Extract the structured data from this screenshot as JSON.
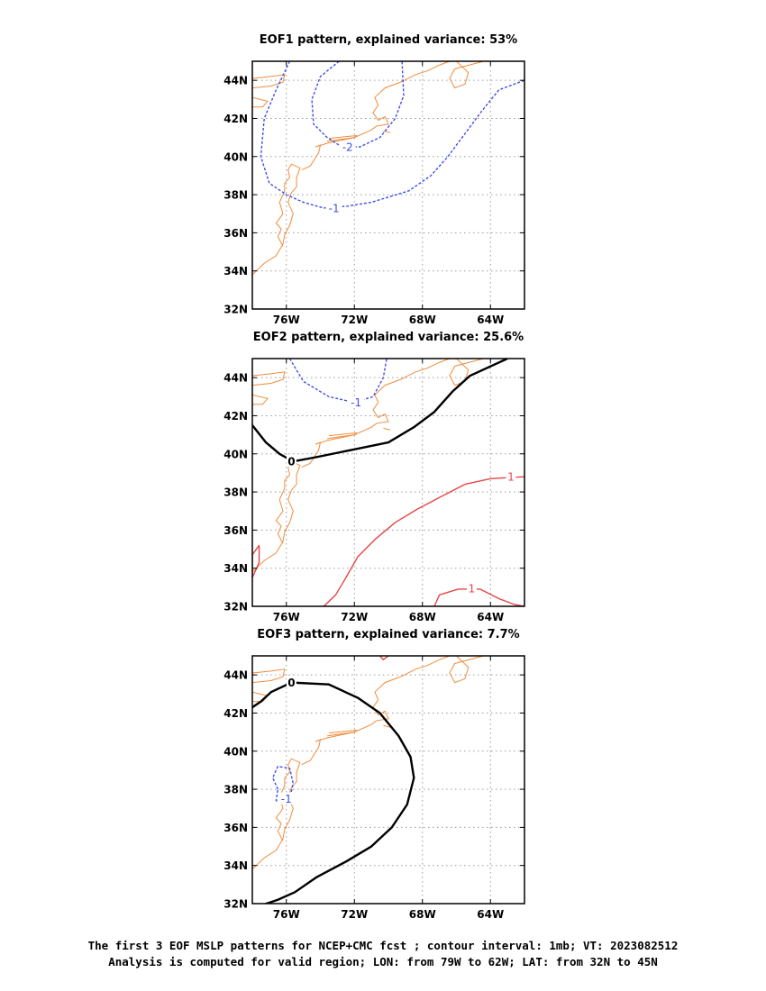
{
  "chart_data": [
    {
      "type": "contour",
      "title": "EOF1 pattern, explained variance: 53%",
      "xlim": [
        -78,
        -62
      ],
      "ylim": [
        32,
        45
      ],
      "xticks": [
        -76,
        -72,
        -68,
        -64
      ],
      "yticks": [
        32,
        34,
        36,
        38,
        40,
        42,
        44
      ],
      "xtick_labels": [
        "76W",
        "72W",
        "68W",
        "64W"
      ],
      "ytick_labels": [
        "32N",
        "34N",
        "36N",
        "38N",
        "40N",
        "42N",
        "44N"
      ],
      "grid": true,
      "coastline_color": "#f08c3c",
      "contours": [
        {
          "level": -1,
          "label": "-1",
          "color": "#3c50e6",
          "style": "dashed",
          "points": [
            [
              -75.8,
              45
            ],
            [
              -76.6,
              43.5
            ],
            [
              -77.3,
              42
            ],
            [
              -77.5,
              40
            ],
            [
              -77,
              38.6
            ],
            [
              -76,
              38
            ],
            [
              -75,
              37.6
            ],
            [
              -73.8,
              37.3
            ],
            [
              -72.4,
              37.4
            ],
            [
              -71,
              37.6
            ],
            [
              -68.8,
              38.2
            ],
            [
              -67.5,
              39
            ],
            [
              -66.5,
              40
            ],
            [
              -65.5,
              41.2
            ],
            [
              -64.5,
              42.4
            ],
            [
              -63.5,
              43.5
            ],
            [
              -62,
              44
            ]
          ],
          "label_at": [
            -73.2,
            37.3
          ]
        },
        {
          "level": -2,
          "label": "-2",
          "color": "#3c50e6",
          "style": "dashed",
          "points": [
            [
              -72.9,
              45
            ],
            [
              -74,
              44.2
            ],
            [
              -74.5,
              43
            ],
            [
              -74.4,
              41.7
            ],
            [
              -73.6,
              41
            ],
            [
              -72.9,
              40.6
            ],
            [
              -71.7,
              40.5
            ],
            [
              -70.5,
              41
            ],
            [
              -69.6,
              42
            ],
            [
              -69.1,
              43.2
            ],
            [
              -69.2,
              45
            ]
          ],
          "label_at": [
            -72.4,
            40.5
          ]
        }
      ]
    },
    {
      "type": "contour",
      "title": "EOF2 pattern, explained variance: 25.6%",
      "xlim": [
        -78,
        -62
      ],
      "ylim": [
        32,
        45
      ],
      "xticks": [
        -76,
        -72,
        -68,
        -64
      ],
      "yticks": [
        32,
        34,
        36,
        38,
        40,
        42,
        44
      ],
      "xtick_labels": [
        "76W",
        "72W",
        "68W",
        "64W"
      ],
      "ytick_labels": [
        "32N",
        "34N",
        "36N",
        "38N",
        "40N",
        "42N",
        "44N"
      ],
      "grid": true,
      "coastline_color": "#f08c3c",
      "contours": [
        {
          "level": -1,
          "label": "-1",
          "color": "#3c50e6",
          "style": "dashed",
          "points": [
            [
              -75.8,
              45
            ],
            [
              -75,
              43.8
            ],
            [
              -73.5,
              43
            ],
            [
              -72,
              42.7
            ],
            [
              -70.9,
              43
            ],
            [
              -70.3,
              44
            ],
            [
              -70.1,
              45
            ]
          ],
          "label_at": [
            -71.9,
            42.7
          ]
        },
        {
          "level": 0,
          "label": "0",
          "color": "#000000",
          "style": "solid",
          "points": [
            [
              -78,
              41.5
            ],
            [
              -77.2,
              40.6
            ],
            [
              -76.4,
              40
            ],
            [
              -75.6,
              39.6
            ],
            [
              -74.4,
              39.8
            ],
            [
              -72.2,
              40.2
            ],
            [
              -70,
              40.6
            ],
            [
              -68.5,
              41.4
            ],
            [
              -67.3,
              42.2
            ],
            [
              -66.2,
              43.3
            ],
            [
              -65.2,
              44.1
            ],
            [
              -63,
              45
            ]
          ],
          "label_at": [
            -75.7,
            39.6
          ]
        },
        {
          "level": 1,
          "label": "1",
          "color": "#e64646",
          "style": "solid",
          "points": [
            [
              -73.8,
              32
            ],
            [
              -73.1,
              32.6
            ],
            [
              -72.5,
              33.5
            ],
            [
              -71.8,
              34.6
            ],
            [
              -70.8,
              35.5
            ],
            [
              -69.6,
              36.4
            ],
            [
              -68.3,
              37.1
            ],
            [
              -66.8,
              37.8
            ],
            [
              -65.5,
              38.4
            ],
            [
              -64,
              38.7
            ],
            [
              -62,
              38.8
            ]
          ],
          "label_at": [
            -62.8,
            38.8
          ]
        },
        {
          "level": 1,
          "label": "1",
          "color": "#e64646",
          "style": "solid",
          "points": [
            [
              -67.3,
              32
            ],
            [
              -67,
              32.6
            ],
            [
              -65.9,
              32.9
            ],
            [
              -64.6,
              32.9
            ],
            [
              -63.5,
              32.4
            ],
            [
              -62.6,
              32.1
            ],
            [
              -62,
              32
            ]
          ],
          "label_at": [
            -65.1,
            32.95
          ]
        },
        {
          "level": 1,
          "label": "",
          "color": "#e64646",
          "style": "solid",
          "points": [
            [
              -77.6,
              35.2
            ],
            [
              -78,
              34.7
            ],
            [
              -78,
              33.5
            ],
            [
              -77.6,
              34.3
            ],
            [
              -77.6,
              35.2
            ]
          ],
          "label_at": null
        }
      ]
    },
    {
      "type": "contour",
      "title": "EOF3 pattern, explained variance: 7.7%",
      "xlim": [
        -78,
        -62
      ],
      "ylim": [
        32,
        45
      ],
      "xticks": [
        -76,
        -72,
        -68,
        -64
      ],
      "yticks": [
        32,
        34,
        36,
        38,
        40,
        42,
        44
      ],
      "xtick_labels": [
        "76W",
        "72W",
        "68W",
        "64W"
      ],
      "ytick_labels": [
        "32N",
        "34N",
        "36N",
        "38N",
        "40N",
        "42N",
        "44N"
      ],
      "grid": true,
      "coastline_color": "#f08c3c",
      "contours": [
        {
          "level": 0,
          "label": "0",
          "color": "#000000",
          "style": "solid",
          "points": [
            [
              -77.5,
              31.9
            ],
            [
              -76.5,
              32.2
            ],
            [
              -75.5,
              32.6
            ],
            [
              -74.2,
              33.4
            ],
            [
              -72.5,
              34.2
            ],
            [
              -71,
              35
            ],
            [
              -69.8,
              36
            ],
            [
              -68.9,
              37.2
            ],
            [
              -68.5,
              38.6
            ],
            [
              -68.7,
              39.7
            ],
            [
              -69.4,
              40.8
            ],
            [
              -70.5,
              42
            ],
            [
              -71.8,
              42.8
            ],
            [
              -73.5,
              43.5
            ],
            [
              -75.7,
              43.6
            ],
            [
              -76.9,
              43.1
            ],
            [
              -77.5,
              42.6
            ],
            [
              -78,
              42.3
            ]
          ],
          "label_at": [
            -75.7,
            43.6
          ]
        },
        {
          "level": -1,
          "label": "-1",
          "color": "#3c50e6",
          "style": "dashed",
          "points": [
            [
              -76.5,
              38
            ],
            [
              -76.8,
              38.6
            ],
            [
              -76.5,
              39.2
            ],
            [
              -75.8,
              39.1
            ],
            [
              -75.6,
              38.3
            ],
            [
              -75.8,
              37.5
            ],
            [
              -76.6,
              37.4
            ],
            [
              -76.5,
              38
            ]
          ],
          "label_at": [
            -76,
            37.5
          ]
        },
        {
          "level": 1,
          "label": "1",
          "color": "#e64646",
          "style": "solid",
          "points": [
            [
              -70.5,
              45
            ],
            [
              -70.3,
              44.8
            ],
            [
              -70,
              45
            ]
          ],
          "label_at": null
        }
      ]
    }
  ],
  "caption": {
    "line1": "The first 3 EOF MSLP patterns for NCEP+CMC fcst ; contour interval: 1mb; VT: 2023082512",
    "line2": "Analysis is computed for valid region; LON: from 79W to 62W; LAT: from 32N to 45N"
  }
}
